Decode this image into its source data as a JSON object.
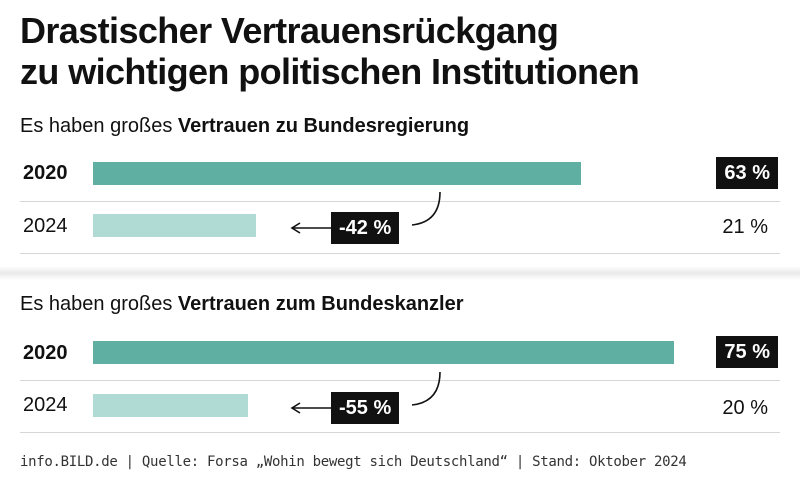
{
  "title_line1": "Drastischer Vertrauensrückgang",
  "title_line2": "zu wichtigen politischen Institutionen",
  "footer": "info.BILD.de | Quelle: Forsa „Wohin bewegt sich Deutschland“ | Stand: Oktober 2024",
  "colors": {
    "bar_2020": "#5fb0a2",
    "bar_2024": "#b0dad4"
  },
  "chart_data": [
    {
      "type": "bar",
      "subtitle_prefix": "Es haben großes ",
      "subtitle_bold": "Vertrauen zu Bundesregierung",
      "categories": [
        "2020",
        "2024"
      ],
      "values": [
        63,
        21
      ],
      "value_labels": [
        "63 %",
        "21 %"
      ],
      "change_label": "-42 %",
      "unit": "%"
    },
    {
      "type": "bar",
      "subtitle_prefix": "Es haben großes ",
      "subtitle_bold": "Vertrauen zum Bundeskanzler",
      "categories": [
        "2020",
        "2024"
      ],
      "values": [
        75,
        20
      ],
      "value_labels": [
        "75 %",
        "20 %"
      ],
      "change_label": "-55 %",
      "unit": "%"
    }
  ]
}
